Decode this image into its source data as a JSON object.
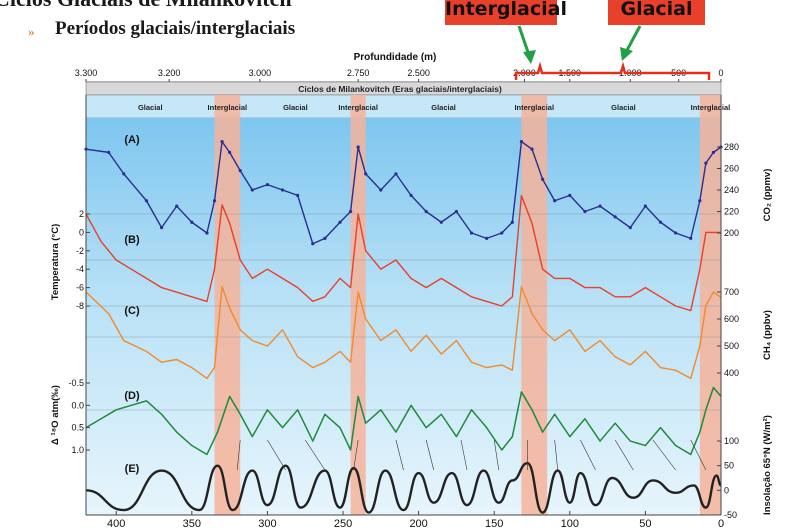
{
  "slide": {
    "title": "Ciclos Glaciais de Milankovitch",
    "bullet": "»",
    "subtitle": "Períodos glaciais/interglaciais",
    "callouts": {
      "interglacial": "Interglacial",
      "glacial": "Glacial"
    }
  },
  "colors": {
    "arrow": "#22a045",
    "bracket": "#e0301e",
    "callout_bg": "#e8402a",
    "band_blue": "#a9dcf5",
    "interglacial_band": "#f6b39a",
    "series_A": "#2a2f8f",
    "series_B": "#e8402a",
    "series_C": "#f08a2c",
    "series_D": "#1f8a3a",
    "series_E": "#222222"
  },
  "chart_data": {
    "type": "line",
    "title": "Ciclos de Milankovitch (Eras glaciais/interglaciais)",
    "top_axis": {
      "label": "Profundidade (m)",
      "ticks": [
        {
          "label": "3.300",
          "kyr": 420
        },
        {
          "label": "3.200",
          "kyr": 365
        },
        {
          "label": "3.000",
          "kyr": 305
        },
        {
          "label": "2.750",
          "kyr": 240
        },
        {
          "label": "2.500",
          "kyr": 200
        },
        {
          "label": "2.000",
          "kyr": 130
        },
        {
          "label": "1.500",
          "kyr": 100
        },
        {
          "label": "1.000",
          "kyr": 60
        },
        {
          "label": "500",
          "kyr": 28
        },
        {
          "label": "0",
          "kyr": 0
        }
      ]
    },
    "x_axis": {
      "label": "",
      "ticks": [
        "400",
        "350",
        "300",
        "250",
        "200",
        "150",
        "100",
        "50",
        "0"
      ],
      "range": [
        420,
        0
      ]
    },
    "periods": [
      {
        "label": "Glacial",
        "from": 420,
        "to": 335
      },
      {
        "label": "Interglacial",
        "from": 335,
        "to": 318
      },
      {
        "label": "Glacial",
        "from": 318,
        "to": 245
      },
      {
        "label": "Interglacial",
        "from": 245,
        "to": 235
      },
      {
        "label": "Glacial",
        "from": 235,
        "to": 132
      },
      {
        "label": "Interglacial",
        "from": 132,
        "to": 115
      },
      {
        "label": "Glacial",
        "from": 115,
        "to": 14
      },
      {
        "label": "Interglacial",
        "from": 14,
        "to": 0
      }
    ],
    "left_axis": {
      "label_temp": "Temperatura (°C)",
      "temp_ticks": [
        "2",
        "0",
        "-2",
        "-4",
        "-6",
        "-8"
      ],
      "label_d18O": "Δ ¹⁸O atm(‰)",
      "d18O_ticks": [
        "-0.5",
        "0.0",
        "0.5",
        "1.0"
      ]
    },
    "right_axis": {
      "label_co2": "CO₂ (ppmv)",
      "co2_ticks": [
        "280",
        "260",
        "240",
        "220",
        "200"
      ],
      "label_ch4": "CH₄ (ppbv)",
      "ch4_ticks": [
        "700",
        "600",
        "500",
        "400"
      ],
      "label_insol": "Insolação 65°N (W/m²)",
      "insol_ticks": [
        "100",
        "50",
        "0",
        "-50"
      ]
    },
    "series": [
      {
        "name": "(A)",
        "unit": "CO2 ppmv",
        "x": [
          420,
          405,
          395,
          380,
          370,
          360,
          350,
          340,
          335,
          330,
          325,
          318,
          310,
          300,
          290,
          280,
          270,
          262,
          252,
          245,
          240,
          235,
          225,
          215,
          205,
          195,
          185,
          175,
          165,
          155,
          145,
          138,
          132,
          125,
          118,
          110,
          100,
          90,
          80,
          70,
          60,
          50,
          40,
          30,
          20,
          14,
          10,
          5,
          0
        ],
        "y": [
          278,
          275,
          255,
          230,
          205,
          225,
          210,
          200,
          230,
          285,
          275,
          258,
          240,
          245,
          240,
          235,
          190,
          195,
          210,
          220,
          280,
          255,
          240,
          255,
          235,
          220,
          210,
          220,
          200,
          195,
          200,
          210,
          285,
          278,
          250,
          230,
          235,
          220,
          225,
          215,
          205,
          225,
          210,
          200,
          195,
          230,
          265,
          275,
          280
        ]
      },
      {
        "name": "(B)",
        "unit": "Temperatura °C",
        "x": [
          420,
          410,
          400,
          390,
          380,
          370,
          360,
          350,
          340,
          335,
          330,
          325,
          318,
          310,
          300,
          290,
          280,
          270,
          262,
          252,
          245,
          240,
          235,
          225,
          215,
          205,
          195,
          185,
          175,
          165,
          155,
          145,
          138,
          132,
          125,
          118,
          110,
          100,
          90,
          80,
          70,
          60,
          50,
          40,
          30,
          20,
          14,
          10,
          5,
          0
        ],
        "y": [
          2,
          -1,
          -3,
          -4,
          -5,
          -6,
          -6.5,
          -7,
          -7.5,
          -4,
          3,
          1,
          -3,
          -5,
          -4,
          -5,
          -6,
          -7.5,
          -7,
          -5,
          -6,
          2,
          -2,
          -4,
          -3,
          -5,
          -6,
          -5,
          -6,
          -7,
          -7.5,
          -8,
          -7,
          4,
          1,
          -4,
          -5,
          -5,
          -6,
          -6,
          -7,
          -7,
          -6,
          -7,
          -8,
          -8.5,
          -4,
          0,
          0,
          0
        ]
      },
      {
        "name": "(C)",
        "unit": "CH4 ppbv",
        "x": [
          420,
          405,
          395,
          380,
          370,
          360,
          350,
          340,
          335,
          330,
          325,
          318,
          310,
          300,
          290,
          280,
          270,
          262,
          252,
          245,
          240,
          235,
          225,
          215,
          205,
          195,
          185,
          175,
          165,
          155,
          145,
          138,
          132,
          125,
          118,
          110,
          100,
          90,
          80,
          70,
          60,
          50,
          40,
          30,
          20,
          14,
          10,
          5,
          0
        ],
        "y": [
          700,
          620,
          520,
          480,
          440,
          450,
          420,
          380,
          420,
          720,
          640,
          560,
          520,
          500,
          560,
          460,
          420,
          440,
          480,
          440,
          700,
          600,
          520,
          560,
          480,
          540,
          470,
          520,
          440,
          420,
          430,
          410,
          720,
          620,
          560,
          520,
          560,
          480,
          520,
          460,
          430,
          480,
          420,
          410,
          380,
          500,
          650,
          700,
          680
        ]
      },
      {
        "name": "(D)",
        "unit": "Δ18O atm ‰",
        "x": [
          420,
          410,
          400,
          390,
          380,
          370,
          360,
          350,
          340,
          333,
          325,
          318,
          310,
          300,
          290,
          280,
          270,
          262,
          252,
          245,
          240,
          235,
          225,
          215,
          205,
          195,
          185,
          175,
          165,
          155,
          145,
          138,
          132,
          125,
          118,
          110,
          100,
          90,
          80,
          70,
          60,
          50,
          40,
          30,
          20,
          14,
          10,
          5,
          0
        ],
        "y": [
          0.5,
          0.3,
          0.1,
          0.0,
          -0.1,
          0.2,
          0.6,
          0.9,
          1.1,
          0.6,
          -0.2,
          0.2,
          0.7,
          0.1,
          0.5,
          0.1,
          0.8,
          0.2,
          0.5,
          1.0,
          -0.2,
          0.4,
          0.1,
          0.6,
          0.0,
          0.5,
          0.2,
          0.7,
          0.1,
          0.5,
          1.0,
          0.7,
          -0.3,
          0.1,
          0.6,
          0.2,
          0.7,
          0.3,
          0.8,
          0.4,
          0.8,
          0.9,
          0.5,
          0.9,
          1.1,
          0.6,
          0.1,
          -0.4,
          -0.2
        ]
      },
      {
        "name": "(E)",
        "unit": "Insolação 65°N W/m²",
        "x": [
          420,
          395,
          370,
          345,
          333,
          323,
          310,
          300,
          288,
          278,
          262,
          252,
          243,
          233,
          222,
          210,
          200,
          190,
          178,
          168,
          157,
          147,
          138,
          128,
          118,
          108,
          100,
          93,
          83,
          72,
          58,
          45,
          30,
          18,
          10,
          3,
          0
        ],
        "y": [
          0,
          -40,
          40,
          -40,
          50,
          -40,
          40,
          -30,
          50,
          -35,
          40,
          -35,
          45,
          -45,
          40,
          -40,
          35,
          -25,
          35,
          -30,
          40,
          -25,
          20,
          55,
          -45,
          40,
          -25,
          35,
          -30,
          25,
          -15,
          20,
          -5,
          10,
          -35,
          30,
          10
        ]
      }
    ],
    "grid": true,
    "legend": "none"
  }
}
